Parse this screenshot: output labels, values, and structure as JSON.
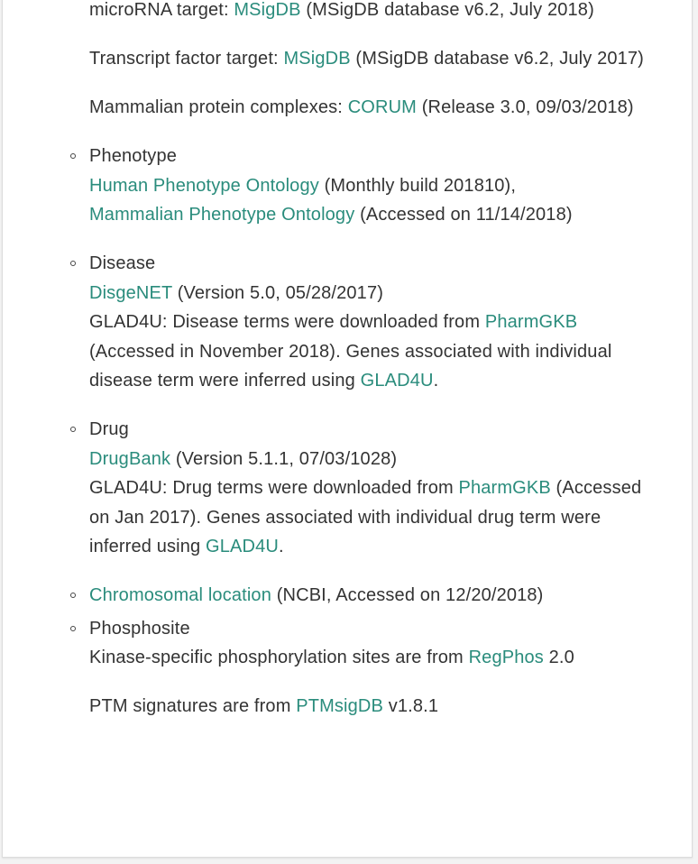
{
  "mirna": {
    "prefix": "microRNA target: ",
    "link": "MSigDB",
    "suffix": " (MSigDB database v6.2, July 2018)"
  },
  "tf": {
    "prefix": "Transcript factor target: ",
    "link": "MSigDB",
    "suffix": " (MSigDB database v6.2, July 2017)"
  },
  "complex": {
    "prefix": "Mammalian protein complexes: ",
    "link": "CORUM",
    "suffix": " (Release 3.0, 09/03/2018)"
  },
  "phenotype": {
    "title": "Phenotype",
    "hpo_link": "Human Phenotype Ontology",
    "hpo_suffix": " (Monthly build 201810),",
    "mpo_link": "Mammalian Phenotype Ontology",
    "mpo_suffix": " (Accessed on 11/14/2018)"
  },
  "disease": {
    "title": "Disease",
    "disgenet_link": "DisgeNET",
    "disgenet_suffix": " (Version 5.0, 05/28/2017)",
    "glad_prefix": "GLAD4U: Disease terms were downloaded from ",
    "pharmgkb_link": "PharmGKB",
    "glad_middle": " (Accessed in November 2018). Genes associated with individual disease term were inferred using ",
    "glad4u_link": "GLAD4U",
    "glad_end": "."
  },
  "drug": {
    "title": "Drug",
    "drugbank_link": "DrugBank",
    "drugbank_suffix": " (Version 5.1.1, 07/03/1028)",
    "glad_prefix": "GLAD4U: Drug terms were downloaded from ",
    "pharmgkb_link": "PharmGKB",
    "glad_middle": " (Accessed on Jan 2017). Genes associated with individual drug term were inferred using ",
    "glad4u_link": "GLAD4U",
    "glad_end": "."
  },
  "chromosomal": {
    "link": "Chromosomal location",
    "suffix": " (NCBI, Accessed on 12/20/2018)"
  },
  "phosphosite": {
    "title": "Phosphosite",
    "kinase_prefix": "Kinase-specific phosphorylation sites are from ",
    "regphos_link": "RegPhos",
    "kinase_suffix": " 2.0",
    "ptm_prefix": "PTM signatures are from ",
    "ptmsigdb_link": "PTMsigDB",
    "ptm_suffix": " v1.8.1"
  },
  "colors": {
    "link": "#2a8c7c",
    "text": "#333333"
  }
}
